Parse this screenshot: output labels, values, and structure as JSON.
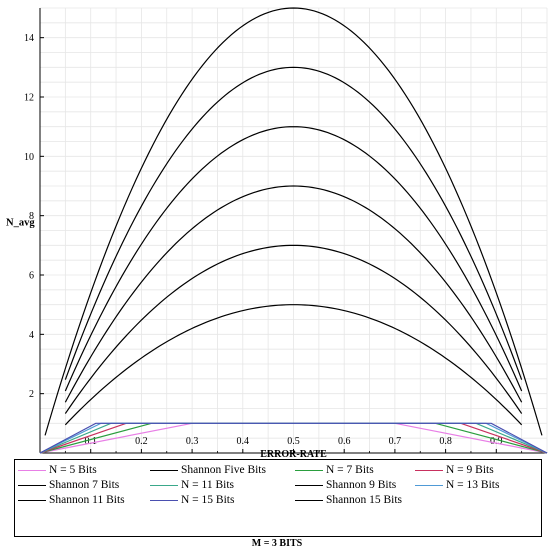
{
  "chart_data": {
    "type": "line",
    "title": "",
    "xlabel": "ERROR-RATE",
    "ylabel": "N_avg",
    "xlim": [
      0,
      1
    ],
    "ylim": [
      0,
      15
    ],
    "xticks": [
      "0.1",
      "0.2",
      "0.3",
      "0.4",
      "0.5",
      "0.6",
      "0.7",
      "0.8",
      "0.9"
    ],
    "yticks": [
      "2",
      "4",
      "6",
      "8",
      "10",
      "12",
      "14"
    ],
    "grid": true,
    "legend_position": "bottom",
    "caption": "M = 3 BITS",
    "series": [
      {
        "name": "N = 5 Bits",
        "kind": "plateau",
        "color": "#e87fe6",
        "x": [
          0,
          0.3,
          0.7,
          1
        ],
        "y": [
          0,
          1,
          1,
          0
        ]
      },
      {
        "name": "Shannon Five Bits",
        "kind": "parabola",
        "peak": 5,
        "range": [
          0.05,
          0.95
        ],
        "color": "#000000"
      },
      {
        "name": "N = 7 Bits",
        "kind": "plateau",
        "color": "#2a9e3e",
        "x": [
          0,
          0.22,
          0.78,
          1
        ],
        "y": [
          0,
          1,
          1,
          0
        ]
      },
      {
        "name": "N = 9 Bits",
        "kind": "plateau",
        "color": "#c8305e",
        "x": [
          0,
          0.17,
          0.83,
          1
        ],
        "y": [
          0,
          1,
          1,
          0
        ]
      },
      {
        "name": "Shannon 7 Bits",
        "kind": "parabola",
        "peak": 7,
        "range": [
          0.05,
          0.95
        ],
        "color": "#000000"
      },
      {
        "name": "N = 11 Bits",
        "kind": "plateau",
        "color": "#3aa88a",
        "x": [
          0,
          0.14,
          0.86,
          1
        ],
        "y": [
          0,
          1,
          1,
          0
        ]
      },
      {
        "name": "Shannon 9 Bits",
        "kind": "parabola",
        "peak": 9,
        "range": [
          0.05,
          0.95
        ],
        "color": "#000000"
      },
      {
        "name": "N = 13 Bits",
        "kind": "plateau",
        "color": "#4f9ad6",
        "x": [
          0,
          0.12,
          0.88,
          1
        ],
        "y": [
          0,
          1,
          1,
          0
        ]
      },
      {
        "name": "Shannon 11 Bits",
        "kind": "parabola",
        "peak": 11,
        "range": [
          0.05,
          0.95
        ],
        "color": "#000000"
      },
      {
        "name": "N = 15 Bits",
        "kind": "plateau",
        "color": "#4a4fb0",
        "x": [
          0,
          0.11,
          0.89,
          1
        ],
        "y": [
          0,
          1,
          1,
          0
        ]
      },
      {
        "name": "Shannon 15 Bits",
        "kind": "parabola",
        "peak": 15,
        "range": [
          0.01,
          0.99
        ],
        "color": "#000000"
      },
      {
        "name": "",
        "kind": "parabola",
        "peak": 13,
        "range": [
          0.05,
          0.95
        ],
        "color": "#000000"
      }
    ]
  }
}
